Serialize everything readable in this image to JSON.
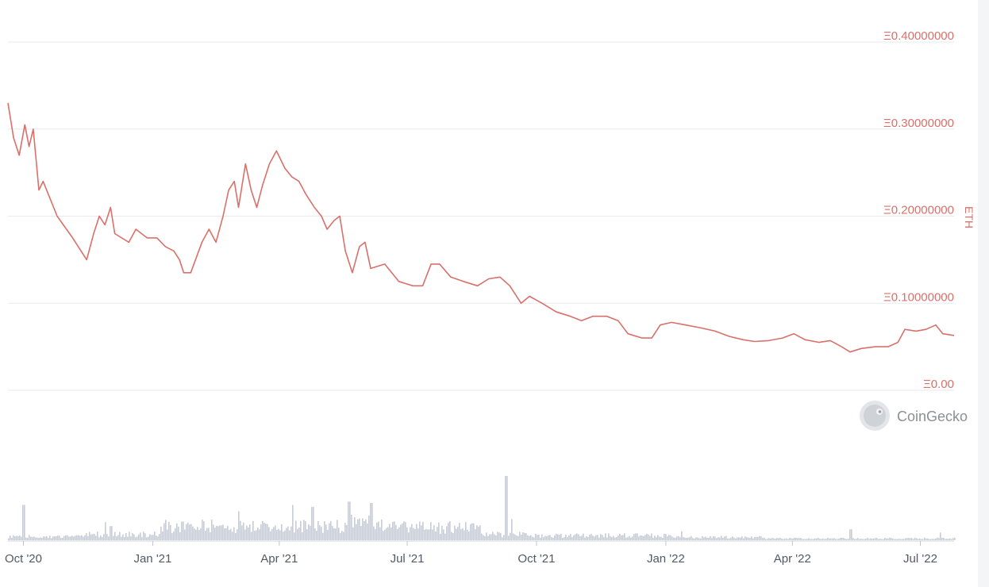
{
  "chart_data": {
    "type": "line",
    "ylabel": "ETH",
    "ylim": [
      0,
      0.4
    ],
    "y_ticks": [
      "Ξ0.40000000",
      "Ξ0.30000000",
      "Ξ0.20000000",
      "Ξ0.10000000",
      "Ξ0.00"
    ],
    "y_tick_values": [
      0.4,
      0.3,
      0.2,
      0.1,
      0
    ],
    "x_ticks": [
      "Oct '20",
      "Jan '21",
      "Apr '21",
      "Jul '21",
      "Oct '21",
      "Jan '22",
      "Apr '22",
      "Jul '22"
    ],
    "x_tick_dates": [
      "2020-10-01",
      "2021-01-01",
      "2021-04-01",
      "2021-07-01",
      "2021-10-01",
      "2022-01-01",
      "2022-04-01",
      "2022-07-01"
    ],
    "xlim": [
      "2020-09-20",
      "2022-07-25"
    ],
    "grid": true,
    "series": [
      {
        "color": "#d9706a",
        "points": [
          [
            "2020-09-20",
            0.33
          ],
          [
            "2020-09-24",
            0.29
          ],
          [
            "2020-09-28",
            0.27
          ],
          [
            "2020-10-02",
            0.305
          ],
          [
            "2020-10-05",
            0.28
          ],
          [
            "2020-10-08",
            0.3
          ],
          [
            "2020-10-12",
            0.23
          ],
          [
            "2020-10-15",
            0.24
          ],
          [
            "2020-10-25",
            0.2
          ],
          [
            "2020-11-05",
            0.175
          ],
          [
            "2020-11-15",
            0.15
          ],
          [
            "2020-11-20",
            0.18
          ],
          [
            "2020-11-24",
            0.2
          ],
          [
            "2020-11-28",
            0.19
          ],
          [
            "2020-12-02",
            0.21
          ],
          [
            "2020-12-05",
            0.18
          ],
          [
            "2020-12-15",
            0.17
          ],
          [
            "2020-12-20",
            0.185
          ],
          [
            "2020-12-28",
            0.175
          ],
          [
            "2021-01-04",
            0.175
          ],
          [
            "2021-01-10",
            0.165
          ],
          [
            "2021-01-16",
            0.16
          ],
          [
            "2021-01-20",
            0.15
          ],
          [
            "2021-01-23",
            0.135
          ],
          [
            "2021-01-28",
            0.135
          ],
          [
            "2021-02-05",
            0.17
          ],
          [
            "2021-02-10",
            0.185
          ],
          [
            "2021-02-15",
            0.17
          ],
          [
            "2021-02-20",
            0.2
          ],
          [
            "2021-02-24",
            0.23
          ],
          [
            "2021-02-28",
            0.24
          ],
          [
            "2021-03-03",
            0.21
          ],
          [
            "2021-03-08",
            0.26
          ],
          [
            "2021-03-12",
            0.23
          ],
          [
            "2021-03-16",
            0.21
          ],
          [
            "2021-03-20",
            0.235
          ],
          [
            "2021-03-25",
            0.26
          ],
          [
            "2021-03-30",
            0.275
          ],
          [
            "2021-04-05",
            0.255
          ],
          [
            "2021-04-10",
            0.245
          ],
          [
            "2021-04-15",
            0.24
          ],
          [
            "2021-04-20",
            0.225
          ],
          [
            "2021-04-26",
            0.21
          ],
          [
            "2021-05-01",
            0.2
          ],
          [
            "2021-05-05",
            0.185
          ],
          [
            "2021-05-10",
            0.195
          ],
          [
            "2021-05-14",
            0.2
          ],
          [
            "2021-05-18",
            0.16
          ],
          [
            "2021-05-23",
            0.135
          ],
          [
            "2021-05-28",
            0.165
          ],
          [
            "2021-06-01",
            0.17
          ],
          [
            "2021-06-05",
            0.14
          ],
          [
            "2021-06-15",
            0.145
          ],
          [
            "2021-06-25",
            0.125
          ],
          [
            "2021-07-05",
            0.12
          ],
          [
            "2021-07-12",
            0.12
          ],
          [
            "2021-07-18",
            0.145
          ],
          [
            "2021-07-24",
            0.145
          ],
          [
            "2021-08-01",
            0.13
          ],
          [
            "2021-08-10",
            0.125
          ],
          [
            "2021-08-20",
            0.12
          ],
          [
            "2021-08-28",
            0.128
          ],
          [
            "2021-09-05",
            0.13
          ],
          [
            "2021-09-12",
            0.12
          ],
          [
            "2021-09-20",
            0.1
          ],
          [
            "2021-09-26",
            0.108
          ],
          [
            "2021-10-05",
            0.1
          ],
          [
            "2021-10-15",
            0.09
          ],
          [
            "2021-10-25",
            0.085
          ],
          [
            "2021-11-02",
            0.08
          ],
          [
            "2021-11-10",
            0.085
          ],
          [
            "2021-11-20",
            0.085
          ],
          [
            "2021-11-28",
            0.08
          ],
          [
            "2021-12-05",
            0.065
          ],
          [
            "2021-12-15",
            0.06
          ],
          [
            "2021-12-22",
            0.06
          ],
          [
            "2021-12-28",
            0.075
          ],
          [
            "2022-01-05",
            0.078
          ],
          [
            "2022-01-15",
            0.075
          ],
          [
            "2022-01-25",
            0.072
          ],
          [
            "2022-02-05",
            0.068
          ],
          [
            "2022-02-15",
            0.062
          ],
          [
            "2022-02-25",
            0.058
          ],
          [
            "2022-03-05",
            0.056
          ],
          [
            "2022-03-15",
            0.057
          ],
          [
            "2022-03-25",
            0.06
          ],
          [
            "2022-04-02",
            0.065
          ],
          [
            "2022-04-10",
            0.058
          ],
          [
            "2022-04-20",
            0.055
          ],
          [
            "2022-04-28",
            0.057
          ],
          [
            "2022-05-06",
            0.05
          ],
          [
            "2022-05-12",
            0.044
          ],
          [
            "2022-05-20",
            0.048
          ],
          [
            "2022-05-30",
            0.05
          ],
          [
            "2022-06-08",
            0.05
          ],
          [
            "2022-06-15",
            0.055
          ],
          [
            "2022-06-20",
            0.07
          ],
          [
            "2022-06-28",
            0.068
          ],
          [
            "2022-07-05",
            0.07
          ],
          [
            "2022-07-12",
            0.075
          ],
          [
            "2022-07-17",
            0.065
          ],
          [
            "2022-07-25",
            0.063
          ]
        ]
      }
    ],
    "volume": {
      "color": "#c8ccd4",
      "spikes": [
        [
          "2020-10-01",
          0.55
        ],
        [
          "2020-11-28",
          0.28
        ],
        [
          "2020-12-02",
          0.22
        ],
        [
          "2021-03-03",
          0.45
        ],
        [
          "2021-04-10",
          0.55
        ],
        [
          "2021-04-24",
          0.52
        ],
        [
          "2021-05-20",
          0.6
        ],
        [
          "2021-06-05",
          0.58
        ],
        [
          "2021-09-09",
          1.0
        ],
        [
          "2021-09-13",
          0.33
        ],
        [
          "2022-01-12",
          0.14
        ],
        [
          "2022-05-12",
          0.17
        ],
        [
          "2022-07-15",
          0.12
        ]
      ]
    }
  },
  "branding": {
    "logo_text": "CoinGecko"
  }
}
